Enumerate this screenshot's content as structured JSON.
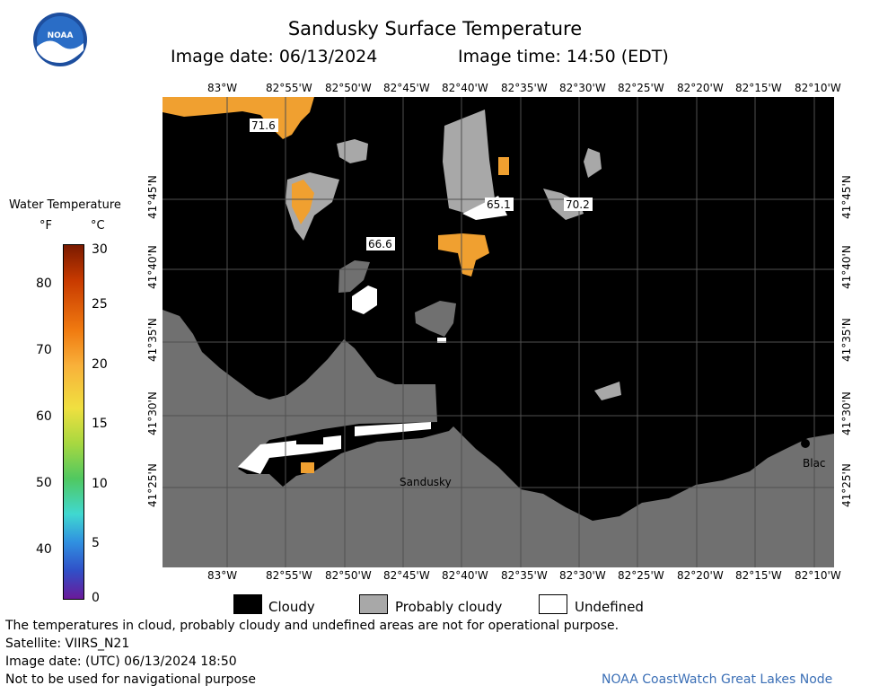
{
  "header": {
    "title": "Sandusky Surface Temperature",
    "image_date": "Image date: 06/13/2024",
    "image_time": "Image time: 14:50 (EDT)"
  },
  "logo": {
    "text": "NOAA"
  },
  "colorbar": {
    "title": "Water Temperature",
    "unit_f": "°F",
    "unit_c": "°C",
    "f_ticks": [
      "80",
      "70",
      "60",
      "50",
      "40"
    ],
    "c_ticks": [
      "30",
      "25",
      "20",
      "15",
      "10",
      "5",
      "0"
    ]
  },
  "map": {
    "lon_labels": [
      "83°W",
      "82°55'W",
      "82°50'W",
      "82°45'W",
      "82°40'W",
      "82°35'W",
      "82°30'W",
      "82°25'W",
      "82°20'W",
      "82°15'W",
      "82°10'W"
    ],
    "lat_labels": [
      "41°45'N",
      "41°40'N",
      "41°35'N",
      "41°30'N",
      "41°25'N"
    ],
    "places": {
      "sandusky": "Sandusky",
      "black": "Blac"
    },
    "temps": {
      "t1": "71.6",
      "t2": "65.1",
      "t3": "70.2",
      "t4": "66.6"
    },
    "colors": {
      "cloudy": "#000000",
      "probably_cloudy": "#a8a8a8",
      "land": "#707070",
      "undefined": "#ffffff",
      "warm": "#f0a030"
    }
  },
  "key": {
    "cloudy": "Cloudy",
    "probably_cloudy": "Probably cloudy",
    "undefined": "Undefined"
  },
  "footer": {
    "line1": "The temperatures in cloud, probably cloudy and undefined areas are not for operational purpose.",
    "line2": "Satellite: VIIRS_N21",
    "line3": "Image date: (UTC) 06/13/2024  18:50",
    "line4": "Not to be used for navigational purpose",
    "credit": "NOAA CoastWatch Great Lakes Node"
  }
}
